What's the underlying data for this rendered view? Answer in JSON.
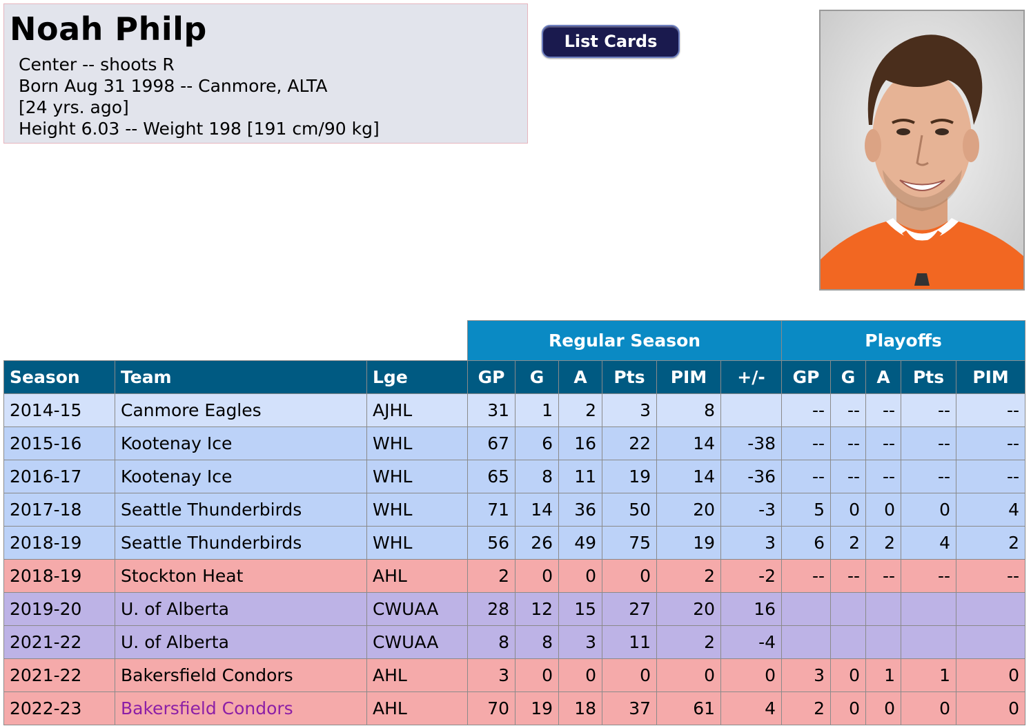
{
  "player": {
    "name": "Noah Philp",
    "position_line": "Center -- shoots R",
    "born_line": "Born Aug 31 1998 -- Canmore, ALTA",
    "age_line": "[24 yrs. ago]",
    "size_line": "Height 6.03 -- Weight 198 [191 cm/90 kg]"
  },
  "buttons": {
    "list_cards": "List Cards"
  },
  "photo": {
    "icon": "player-headshot"
  },
  "table": {
    "group_headers": {
      "regular": "Regular Season",
      "playoffs": "Playoffs"
    },
    "columns": [
      "Season",
      "Team",
      "Lge",
      "GP",
      "G",
      "A",
      "Pts",
      "PIM",
      "+/-",
      "GP",
      "G",
      "A",
      "Pts",
      "PIM"
    ],
    "rows": [
      {
        "league_class": "ajhl",
        "link": false,
        "cells": [
          "2014-15",
          "Canmore Eagles",
          "AJHL",
          "31",
          "1",
          "2",
          "3",
          "8",
          "",
          "--",
          "--",
          "--",
          "--",
          "--"
        ]
      },
      {
        "league_class": "whl",
        "link": false,
        "cells": [
          "2015-16",
          "Kootenay Ice",
          "WHL",
          "67",
          "6",
          "16",
          "22",
          "14",
          "-38",
          "--",
          "--",
          "--",
          "--",
          "--"
        ]
      },
      {
        "league_class": "whl",
        "link": false,
        "cells": [
          "2016-17",
          "Kootenay Ice",
          "WHL",
          "65",
          "8",
          "11",
          "19",
          "14",
          "-36",
          "--",
          "--",
          "--",
          "--",
          "--"
        ]
      },
      {
        "league_class": "whl",
        "link": false,
        "cells": [
          "2017-18",
          "Seattle Thunderbirds",
          "WHL",
          "71",
          "14",
          "36",
          "50",
          "20",
          "-3",
          "5",
          "0",
          "0",
          "0",
          "4"
        ]
      },
      {
        "league_class": "whl",
        "link": false,
        "cells": [
          "2018-19",
          "Seattle Thunderbirds",
          "WHL",
          "56",
          "26",
          "49",
          "75",
          "19",
          "3",
          "6",
          "2",
          "2",
          "4",
          "2"
        ]
      },
      {
        "league_class": "ahl",
        "link": false,
        "cells": [
          "2018-19",
          "Stockton Heat",
          "AHL",
          "2",
          "0",
          "0",
          "0",
          "2",
          "-2",
          "--",
          "--",
          "--",
          "--",
          "--"
        ]
      },
      {
        "league_class": "cwuaa",
        "link": false,
        "cells": [
          "2019-20",
          "U. of Alberta",
          "CWUAA",
          "28",
          "12",
          "15",
          "27",
          "20",
          "16",
          "",
          "",
          "",
          "",
          ""
        ]
      },
      {
        "league_class": "cwuaa",
        "link": false,
        "cells": [
          "2021-22",
          "U. of Alberta",
          "CWUAA",
          "8",
          "8",
          "3",
          "11",
          "2",
          "-4",
          "",
          "",
          "",
          "",
          ""
        ]
      },
      {
        "league_class": "ahl",
        "link": false,
        "cells": [
          "2021-22",
          "Bakersfield Condors",
          "AHL",
          "3",
          "0",
          "0",
          "0",
          "0",
          "0",
          "3",
          "0",
          "1",
          "1",
          "0"
        ]
      },
      {
        "league_class": "ahl",
        "link": true,
        "cells": [
          "2022-23",
          "Bakersfield Condors",
          "AHL",
          "70",
          "19",
          "18",
          "37",
          "61",
          "4",
          "2",
          "0",
          "0",
          "0",
          "0"
        ]
      }
    ]
  }
}
